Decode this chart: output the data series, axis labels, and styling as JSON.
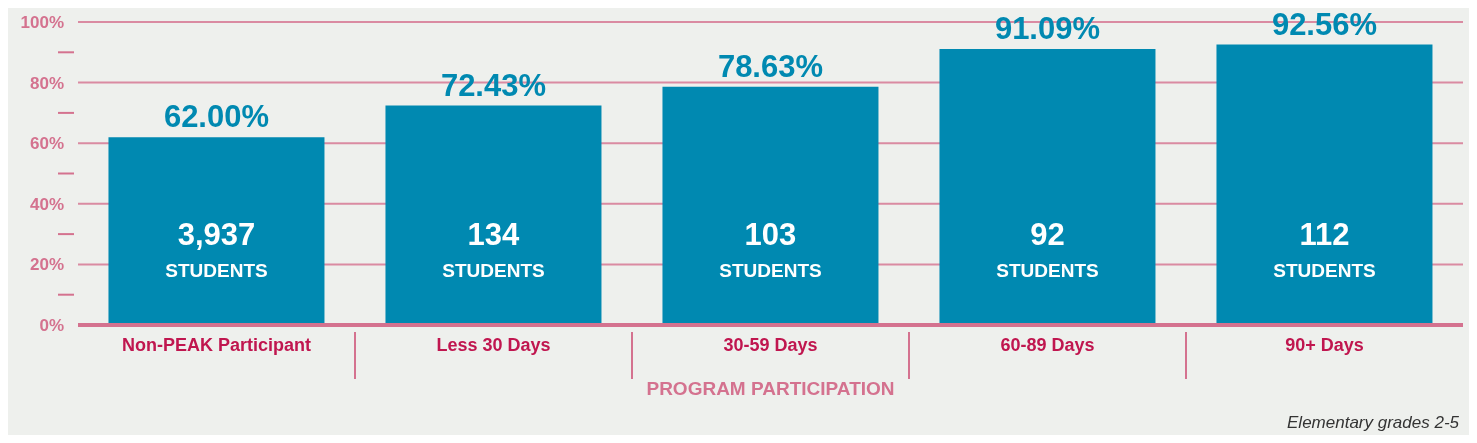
{
  "chart_data": {
    "type": "bar",
    "categories": [
      "Non-PEAK Participant",
      "Less 30 Days",
      "30-59 Days",
      "60-89 Days",
      "90+ Days"
    ],
    "values": [
      62.0,
      72.43,
      78.63,
      91.09,
      92.56
    ],
    "value_labels": [
      "62.00%",
      "72.43%",
      "78.63%",
      "91.09%",
      "92.56%"
    ],
    "color": "#0089b1",
    "xlabel": "PROGRAM PARTICIPATION",
    "ylim": [
      0,
      100
    ],
    "yticks": [
      {
        "value": 0,
        "label": "0%"
      },
      {
        "value": 10,
        "label": null
      },
      {
        "value": 20,
        "label": "20%"
      },
      {
        "value": 30,
        "label": null
      },
      {
        "value": 40,
        "label": "40%"
      },
      {
        "value": 50,
        "label": null
      },
      {
        "value": 60,
        "label": "60%"
      },
      {
        "value": 70,
        "label": null
      },
      {
        "value": 80,
        "label": "80%"
      },
      {
        "value": 90,
        "label": null
      },
      {
        "value": 100,
        "label": "100%"
      }
    ],
    "grid": "y",
    "annotations": [
      "3,937 STUDENTS",
      "134 STUDENTS",
      "103 STUDENTS",
      "92 STUDENTS",
      "112 STUDENTS",
      "Elementary grades 2-5"
    ]
  }
}
